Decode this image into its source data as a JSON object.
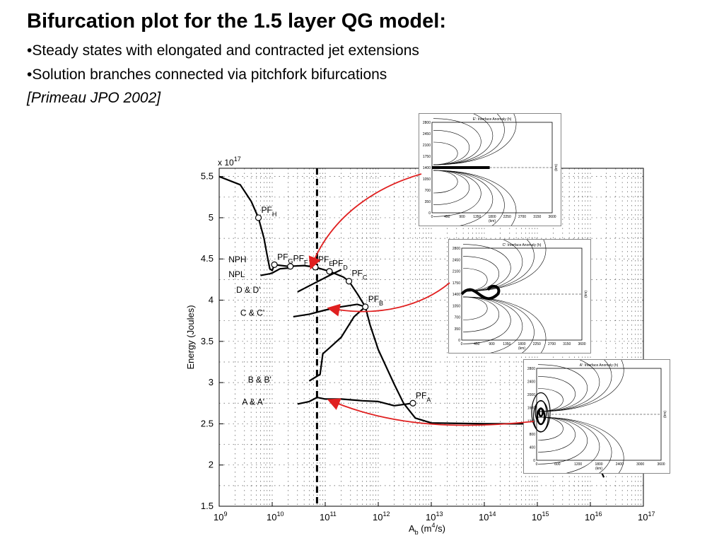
{
  "slide": {
    "title": "Bifurcation plot for the 1.5 layer QG model:",
    "bullets": [
      "•Steady states with elongated and contracted jet extensions",
      "•Solution branches connected via pitchfork bifurcations"
    ],
    "citation": "[Primeau JPO 2002]"
  },
  "chart_data": {
    "type": "line",
    "title": "",
    "xlabel": "A_b (m^4/s)",
    "ylabel": "Energy (Joules)",
    "y_multiplier": "x 10^17",
    "x_scale": "log",
    "xlim": [
      1000000000.0,
      1e+17
    ],
    "ylim": [
      1.5,
      5.6
    ],
    "x_ticks": [
      "10^9",
      "10^10",
      "10^11",
      "10^12",
      "10^13",
      "10^14",
      "10^15",
      "10^16",
      "10^17"
    ],
    "y_ticks": [
      "1.5",
      "2",
      "2.5",
      "3",
      "3.5",
      "4",
      "4.5",
      "5",
      "5.5"
    ],
    "grid": true,
    "reference_line_x": 70000000000.0,
    "branch_labels": [
      "NPH",
      "NPL",
      "D & D'",
      "C & C'",
      "B & B'",
      "A & A'"
    ],
    "bifurcation_points": [
      {
        "name": "PF",
        "sub": "H",
        "x": 5500000000.0,
        "y": 5.0
      },
      {
        "name": "PF",
        "sub": "G",
        "x": 11000000000.0,
        "y": 4.43
      },
      {
        "name": "PF",
        "sub": "F",
        "x": 22000000000.0,
        "y": 4.41
      },
      {
        "name": "PF",
        "sub": "E",
        "x": 65000000000.0,
        "y": 4.4
      },
      {
        "name": "PF",
        "sub": "D",
        "x": 120000000000.0,
        "y": 4.35
      },
      {
        "name": "PF",
        "sub": "C",
        "x": 280000000000.0,
        "y": 4.23
      },
      {
        "name": "PF",
        "sub": "B",
        "x": 570000000000.0,
        "y": 3.92
      },
      {
        "name": "PF",
        "sub": "A",
        "x": 4500000000000.0,
        "y": 2.75
      }
    ],
    "series": [
      {
        "values": [
          [
            1000000000.0,
            5.5
          ],
          [
            2500000000.0,
            5.4
          ],
          [
            4000000000.0,
            5.2
          ],
          [
            5500000000.0,
            5.0
          ],
          [
            7000000000.0,
            4.75
          ],
          [
            8000000000.0,
            4.55
          ],
          [
            9000000000.0,
            4.38
          ],
          [
            10000000000.0,
            4.36
          ],
          [
            11000000000.0,
            4.43
          ],
          [
            20000000000.0,
            4.41
          ],
          [
            40000000000.0,
            4.42
          ],
          [
            65000000000.0,
            4.4
          ],
          [
            120000000000.0,
            4.35
          ],
          [
            220000000000.0,
            4.28
          ],
          [
            280000000000.0,
            4.23
          ],
          [
            400000000000.0,
            4.08
          ],
          [
            570000000000.0,
            3.92
          ],
          [
            700000000000.0,
            3.7
          ],
          [
            1000000000000.0,
            3.4
          ],
          [
            2000000000000.0,
            2.98
          ],
          [
            3000000000000.0,
            2.75
          ],
          [
            5000000000000.0,
            2.57
          ],
          [
            10000000000000.0,
            2.51
          ],
          [
            100000000000000.0,
            2.5
          ],
          [
            800000000000000.0,
            2.5
          ]
        ]
      },
      {
        "values": [
          [
            6000000000.0,
            4.3
          ],
          [
            9000000000.0,
            4.32
          ],
          [
            10000000000.0,
            4.33
          ],
          [
            14000000000.0,
            4.38
          ],
          [
            20000000000.0,
            4.39
          ]
        ]
      },
      {
        "values": [
          [
            30000000000.0,
            4.1
          ],
          [
            60000000000.0,
            4.2
          ],
          [
            120000000000.0,
            4.3
          ],
          [
            200000000000.0,
            4.37
          ]
        ]
      },
      {
        "values": [
          [
            25000000000.0,
            3.8
          ],
          [
            50000000000.0,
            3.83
          ],
          [
            100000000000.0,
            3.88
          ],
          [
            200000000000.0,
            3.92
          ],
          [
            400000000000.0,
            3.95
          ],
          [
            570000000000.0,
            3.92
          ]
        ]
      },
      {
        "values": [
          [
            50000000000.0,
            3.02
          ],
          [
            80000000000.0,
            3.1
          ],
          [
            90000000000.0,
            3.35
          ],
          [
            120000000000.0,
            3.42
          ],
          [
            200000000000.0,
            3.55
          ],
          [
            350000000000.0,
            3.8
          ],
          [
            570000000000.0,
            3.92
          ]
        ]
      },
      {
        "values": [
          [
            30000000000.0,
            2.74
          ],
          [
            50000000000.0,
            2.77
          ],
          [
            70000000000.0,
            2.82
          ],
          [
            100000000000.0,
            2.8
          ],
          [
            200000000000.0,
            2.8
          ],
          [
            500000000000.0,
            2.78
          ],
          [
            1000000000000.0,
            2.77
          ],
          [
            2000000000000.0,
            2.72
          ],
          [
            4500000000000.0,
            2.75
          ]
        ]
      },
      {
        "values": [
          [
            1.2e+16,
            2.1
          ],
          [
            1.8e+16,
            1.85
          ]
        ]
      }
    ]
  },
  "insets": [
    {
      "title": "E': Interface Anomaly (h)",
      "y_ticks": [
        "2800",
        "2450",
        "2100",
        "1750",
        "1400",
        "1050",
        "700",
        "350",
        "0"
      ],
      "x_ticks": [
        "0",
        "450",
        "900",
        "1350",
        "1800",
        "2250",
        "2700",
        "3150",
        "3600"
      ],
      "xunit": "(km)",
      "yunit": "(km)"
    },
    {
      "title": "C': Interface Anomaly (h)",
      "y_ticks": [
        "2800",
        "2450",
        "2100",
        "1750",
        "1400",
        "1050",
        "700",
        "350",
        "0"
      ],
      "x_ticks": [
        "0",
        "450",
        "900",
        "1350",
        "1800",
        "2250",
        "2700",
        "3150",
        "3600"
      ],
      "xunit": "(km)",
      "yunit": "(km)"
    },
    {
      "title": "A': Interface Anomaly (h)",
      "y_ticks": [
        "2800",
        "2400",
        "2000",
        "1600",
        "1200",
        "800",
        "400",
        "0"
      ],
      "x_ticks": [
        "0",
        "600",
        "1200",
        "1800",
        "2400",
        "3000",
        "3600"
      ],
      "xunit": "(km)",
      "yunit": "(km)"
    }
  ],
  "colors": {
    "arrow": "#e02020",
    "curve": "#000000",
    "grid": "#555555"
  }
}
